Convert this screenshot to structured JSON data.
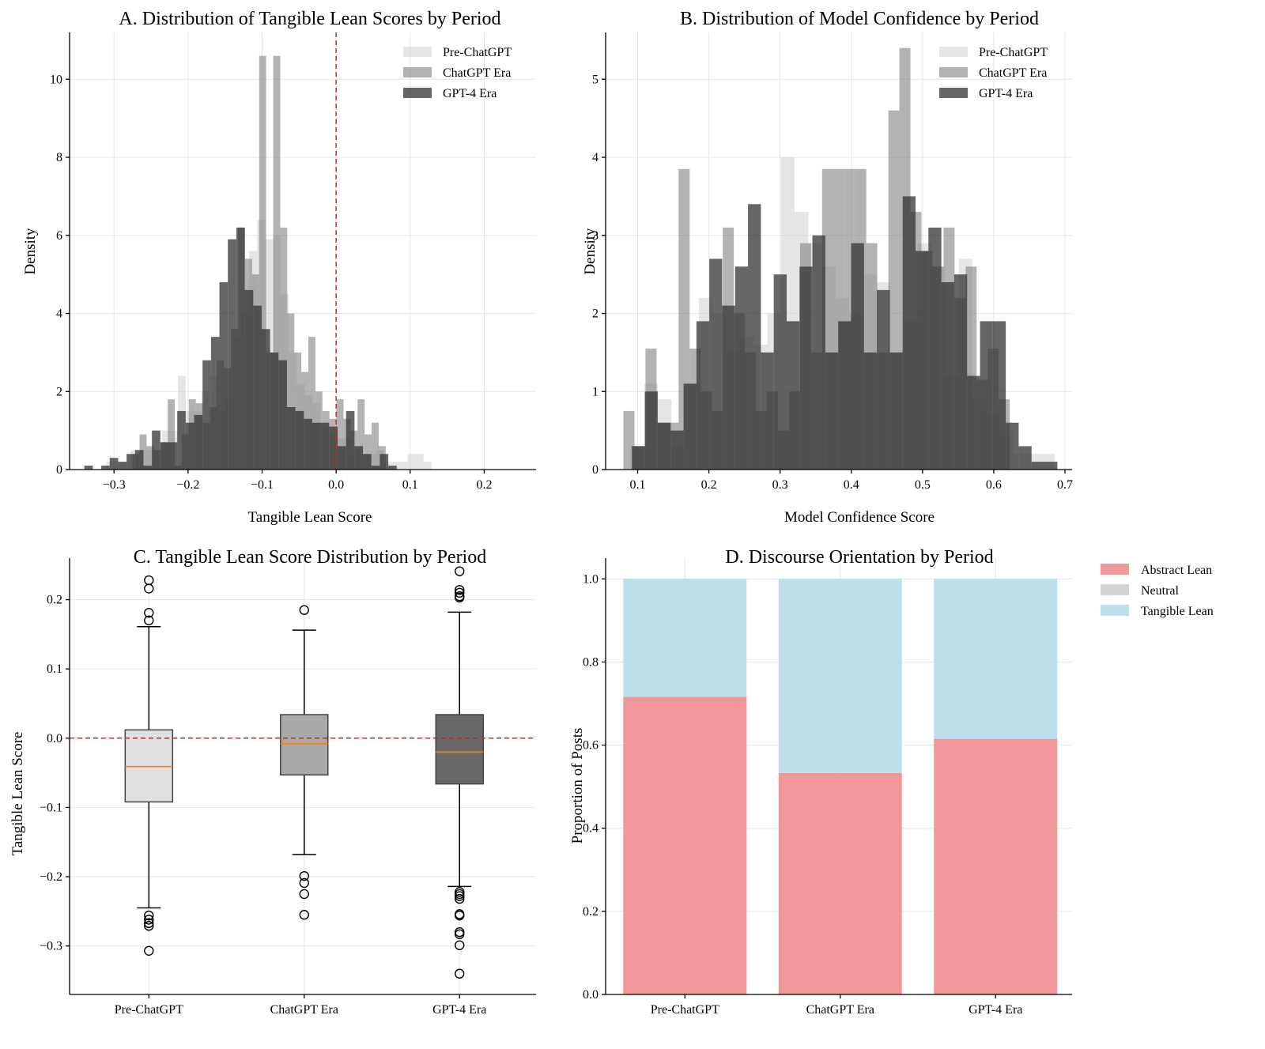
{
  "chart_data": [
    {
      "id": "A",
      "type": "histogram",
      "title": "A. Distribution of Tangible Lean Scores by Period",
      "xlabel": "Tangible Lean Score",
      "ylabel": "Density",
      "xlim": [
        -0.36,
        0.27
      ],
      "ylim": [
        0,
        11.2
      ],
      "xticks": [
        -0.3,
        -0.2,
        -0.1,
        0.0,
        0.1,
        0.2
      ],
      "xtick_labels": [
        "−0.3",
        "−0.2",
        "−0.1",
        "0.0",
        "0.1",
        "0.2"
      ],
      "yticks": [
        0,
        2,
        4,
        6,
        8,
        10
      ],
      "ytick_labels": [
        "0",
        "2",
        "4",
        "6",
        "8",
        "10"
      ],
      "grid": true,
      "legend_position": "top-right",
      "reference_line": {
        "x": 0.0,
        "color": "#e31a1c",
        "style": "dashed"
      },
      "series": [
        {
          "name": "Pre-ChatGPT",
          "color": "#d3d3d3",
          "opacity": 0.6,
          "bin_start": -0.31,
          "bin_width": 0.0107,
          "values": [
            0.2,
            0.2,
            0.2,
            0.5,
            0.5,
            0.5,
            0.5,
            1.0,
            1.0,
            2.4,
            1.5,
            1.5,
            2.0,
            2.4,
            1.5,
            1.8,
            3.4,
            4.0,
            5.6,
            6.4,
            5.9,
            6.0,
            4.5,
            3.0,
            2.2,
            1.9,
            1.7,
            1.1,
            0.9,
            0.8,
            0.8,
            0.5,
            0.4,
            0.4,
            0.5,
            0.2,
            0.2,
            0.2,
            0.4,
            0.4,
            0.2
          ]
        },
        {
          "name": "ChatGPT Era",
          "color": "#808080",
          "opacity": 0.6,
          "bin_start": -0.275,
          "bin_width": 0.0095,
          "values": [
            0.4,
            0.9,
            0.6,
            0.5,
            0.7,
            1.8,
            0.1,
            0.9,
            1.8,
            1.7,
            1.2,
            1.6,
            2.8,
            2.6,
            3.6,
            6.2,
            5.4,
            5.0,
            10.6,
            3.0,
            10.6,
            6.2,
            4.0,
            3.0,
            2.5,
            3.4,
            2.0,
            1.5,
            1.3,
            1.8,
            1.3,
            1.0,
            1.8,
            0.9,
            1.2,
            0.6
          ]
        },
        {
          "name": "GPT-4 Era",
          "color": "#333333",
          "opacity": 0.75,
          "bin_start": -0.34,
          "bin_width": 0.0114,
          "values": [
            0.1,
            0.0,
            0.1,
            0.3,
            0.2,
            0.4,
            0.5,
            0.1,
            1.0,
            0.7,
            0.7,
            1.5,
            1.2,
            1.4,
            2.8,
            3.4,
            4.8,
            5.9,
            6.2,
            4.6,
            4.2,
            3.6,
            3.0,
            2.8,
            1.6,
            1.5,
            1.3,
            1.2,
            1.2,
            1.1,
            0.6,
            1.5,
            0.6,
            0.4,
            0.1,
            0.4,
            0.1
          ]
        }
      ]
    },
    {
      "id": "B",
      "type": "histogram",
      "title": "B. Distribution of Model Confidence by Period",
      "xlabel": "Model Confidence Score",
      "ylabel": "Density",
      "xlim": [
        0.055,
        0.71
      ],
      "ylim": [
        0,
        5.6
      ],
      "xticks": [
        0.1,
        0.2,
        0.3,
        0.4,
        0.5,
        0.6,
        0.7
      ],
      "xtick_labels": [
        "0.1",
        "0.2",
        "0.3",
        "0.4",
        "0.5",
        "0.6",
        "0.7"
      ],
      "yticks": [
        0,
        1,
        2,
        3,
        4,
        5
      ],
      "ytick_labels": [
        "0",
        "1",
        "2",
        "3",
        "4",
        "5"
      ],
      "grid": true,
      "legend_position": "top-right",
      "series": [
        {
          "name": "Pre-ChatGPT",
          "color": "#d3d3d3",
          "opacity": 0.6,
          "bin_start": 0.09,
          "bin_width": 0.0192,
          "values": [
            0.3,
            1.1,
            0.9,
            0.3,
            1.1,
            2.2,
            2.0,
            1.5,
            1.7,
            1.6,
            2.0,
            4.0,
            3.3,
            2.9,
            2.6,
            2.2,
            2.0,
            2.5,
            2.4,
            1.5,
            1.9,
            2.9,
            2.6,
            1.2,
            2.7,
            0.9,
            0.7,
            0.5,
            0.2,
            0.2,
            0.2
          ]
        },
        {
          "name": "ChatGPT Era",
          "color": "#808080",
          "opacity": 0.6,
          "bin_start": 0.08,
          "bin_width": 0.0155,
          "values": [
            0.75,
            0.3,
            1.55,
            0.6,
            0.6,
            3.85,
            1.55,
            1.0,
            0.75,
            3.1,
            2.0,
            1.5,
            0.75,
            1.0,
            0.5,
            1.0,
            2.9,
            1.5,
            3.85,
            3.85,
            3.85,
            3.85,
            2.9,
            1.5,
            4.6,
            5.4,
            3.3,
            2.8,
            2.6,
            3.1,
            2.2,
            2.6,
            1.15,
            1.55,
            0.9
          ]
        },
        {
          "name": "GPT-4 Era",
          "color": "#333333",
          "opacity": 0.75,
          "bin_start": 0.092,
          "bin_width": 0.0181,
          "values": [
            0.3,
            1.0,
            0.6,
            0.5,
            1.1,
            1.9,
            2.7,
            2.1,
            2.6,
            3.4,
            1.5,
            2.5,
            1.9,
            2.6,
            3.0,
            1.5,
            1.9,
            2.9,
            1.5,
            2.3,
            1.5,
            3.5,
            2.8,
            3.1,
            2.4,
            2.5,
            1.2,
            1.9,
            1.9,
            0.6,
            0.3,
            0.1,
            0.1
          ]
        }
      ]
    },
    {
      "id": "C",
      "type": "box",
      "title": "C. Tangible Lean Score Distribution by Period",
      "xlabel": "",
      "ylabel": "Tangible Lean Score",
      "ylim": [
        -0.37,
        0.26
      ],
      "yticks": [
        -0.3,
        -0.2,
        -0.1,
        0.0,
        0.1,
        0.2
      ],
      "ytick_labels": [
        "−0.3",
        "−0.2",
        "−0.1",
        "0.0",
        "0.1",
        "0.2"
      ],
      "grid": true,
      "reference_line": {
        "y": 0.0,
        "color": "#e31a1c",
        "style": "dashed"
      },
      "median_color": "#ff7f0e",
      "categories": [
        "Pre-ChatGPT",
        "ChatGPT Era",
        "GPT-4 Era"
      ],
      "boxes": [
        {
          "name": "Pre-ChatGPT",
          "fill": "#e0e0e0",
          "q1": -0.092,
          "median": -0.041,
          "q3": 0.012,
          "whisker_low": -0.245,
          "whisker_high": 0.161,
          "outliers": [
            0.228,
            0.216,
            0.181,
            0.17,
            -0.256,
            -0.262,
            -0.267,
            -0.271,
            -0.307
          ]
        },
        {
          "name": "ChatGPT Era",
          "fill": "#a9a9a9",
          "q1": -0.053,
          "median": -0.008,
          "q3": 0.034,
          "whisker_low": -0.168,
          "whisker_high": 0.156,
          "outliers": [
            0.185,
            -0.199,
            -0.209,
            -0.225,
            -0.255
          ]
        },
        {
          "name": "GPT-4 Era",
          "fill": "#696969",
          "q1": -0.066,
          "median": -0.02,
          "q3": 0.034,
          "whisker_low": -0.214,
          "whisker_high": 0.182,
          "outliers": [
            0.241,
            0.214,
            0.21,
            0.205,
            0.203,
            -0.222,
            -0.225,
            -0.228,
            -0.232,
            -0.254,
            -0.256,
            -0.28,
            -0.283,
            -0.299,
            -0.34
          ]
        }
      ]
    },
    {
      "id": "D",
      "type": "stacked_bar",
      "title": "D. Discourse Orientation by Period",
      "xlabel": "",
      "ylabel": "Proportion of Posts",
      "ylim": [
        0,
        1.05
      ],
      "yticks": [
        0.0,
        0.2,
        0.4,
        0.6,
        0.8,
        1.0
      ],
      "ytick_labels": [
        "0.0",
        "0.2",
        "0.4",
        "0.6",
        "0.8",
        "1.0"
      ],
      "grid": true,
      "legend_position": "outside-top-right",
      "categories": [
        "Pre-ChatGPT",
        "ChatGPT Era",
        "GPT-4 Era"
      ],
      "series": [
        {
          "name": "Abstract Lean",
          "color": "#f09899",
          "values": [
            0.716,
            0.533,
            0.615
          ]
        },
        {
          "name": "Neutral",
          "color": "#d3d3d3",
          "values": [
            0.0,
            0.0,
            0.0
          ]
        },
        {
          "name": "Tangible Lean",
          "color": "#bddfe9",
          "values": [
            0.284,
            0.467,
            0.385
          ]
        }
      ]
    }
  ]
}
